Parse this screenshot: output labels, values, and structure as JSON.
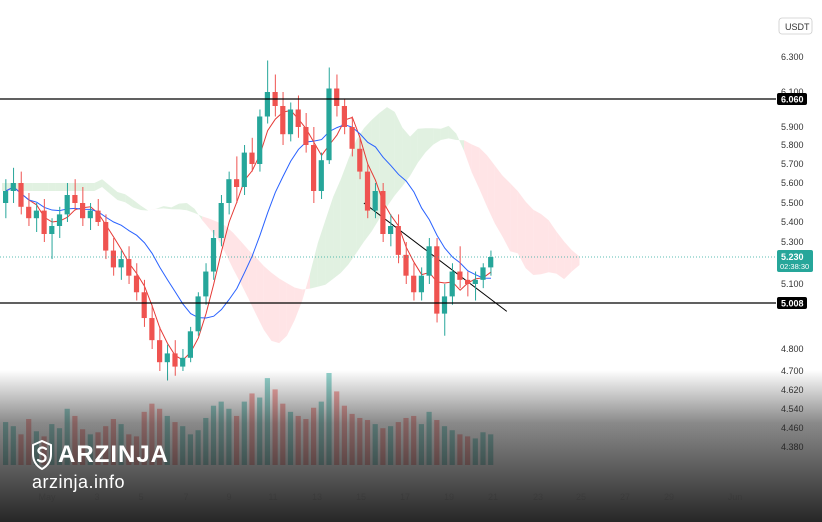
{
  "chart_data": {
    "type": "candlestick",
    "currency": "USDT",
    "y_ticks": [
      "6.300",
      "6.100",
      "5.900",
      "5.800",
      "5.700",
      "5.600",
      "5.500",
      "5.400",
      "5.300",
      "5.100",
      "4.800",
      "4.700",
      "4.620",
      "4.540",
      "4.460",
      "4.380"
    ],
    "x_ticks": [
      "May",
      "3",
      "5",
      "7",
      "9",
      "11",
      "13",
      "15",
      "17",
      "19",
      "21",
      "23",
      "25",
      "27",
      "29",
      "Jun"
    ],
    "last_price": "5.230",
    "countdown": "02:38:30",
    "levels": [
      {
        "label": "6.060",
        "value": 6.06
      },
      {
        "label": "5.008",
        "value": 5.008
      }
    ],
    "colors": {
      "up": "#26a69a",
      "down": "#ef5350",
      "level": "#000000",
      "tenkan": "#e53935",
      "kijun": "#2962ff",
      "cloud_bull": "#c8e6c9",
      "cloud_bear": "#ffcdd2"
    },
    "candles": [
      {
        "o": 5.5,
        "h": 5.62,
        "l": 5.42,
        "c": 5.56
      },
      {
        "o": 5.56,
        "h": 5.68,
        "l": 5.5,
        "c": 5.6
      },
      {
        "o": 5.6,
        "h": 5.66,
        "l": 5.44,
        "c": 5.48
      },
      {
        "o": 5.48,
        "h": 5.55,
        "l": 5.38,
        "c": 5.42
      },
      {
        "o": 5.42,
        "h": 5.5,
        "l": 5.35,
        "c": 5.46
      },
      {
        "o": 5.46,
        "h": 5.52,
        "l": 5.3,
        "c": 5.34
      },
      {
        "o": 5.34,
        "h": 5.42,
        "l": 5.22,
        "c": 5.38
      },
      {
        "o": 5.38,
        "h": 5.48,
        "l": 5.32,
        "c": 5.44
      },
      {
        "o": 5.44,
        "h": 5.6,
        "l": 5.4,
        "c": 5.54
      },
      {
        "o": 5.54,
        "h": 5.62,
        "l": 5.46,
        "c": 5.5
      },
      {
        "o": 5.5,
        "h": 5.58,
        "l": 5.38,
        "c": 5.42
      },
      {
        "o": 5.42,
        "h": 5.5,
        "l": 5.36,
        "c": 5.46
      },
      {
        "o": 5.46,
        "h": 5.52,
        "l": 5.38,
        "c": 5.4
      },
      {
        "o": 5.4,
        "h": 5.44,
        "l": 5.22,
        "c": 5.26
      },
      {
        "o": 5.26,
        "h": 5.32,
        "l": 5.14,
        "c": 5.18
      },
      {
        "o": 5.18,
        "h": 5.26,
        "l": 5.12,
        "c": 5.22
      },
      {
        "o": 5.22,
        "h": 5.28,
        "l": 5.1,
        "c": 5.14
      },
      {
        "o": 5.14,
        "h": 5.2,
        "l": 5.02,
        "c": 5.06
      },
      {
        "o": 5.06,
        "h": 5.12,
        "l": 4.9,
        "c": 4.94
      },
      {
        "o": 4.94,
        "h": 5.0,
        "l": 4.8,
        "c": 4.84
      },
      {
        "o": 4.84,
        "h": 4.9,
        "l": 4.7,
        "c": 4.74
      },
      {
        "o": 4.74,
        "h": 4.82,
        "l": 4.66,
        "c": 4.78
      },
      {
        "o": 4.78,
        "h": 4.84,
        "l": 4.68,
        "c": 4.72
      },
      {
        "o": 4.72,
        "h": 4.8,
        "l": 4.7,
        "c": 4.76
      },
      {
        "o": 4.76,
        "h": 4.9,
        "l": 4.74,
        "c": 4.88
      },
      {
        "o": 4.88,
        "h": 5.06,
        "l": 4.86,
        "c": 5.04
      },
      {
        "o": 5.04,
        "h": 5.2,
        "l": 5.0,
        "c": 5.16
      },
      {
        "o": 5.16,
        "h": 5.36,
        "l": 5.12,
        "c": 5.32
      },
      {
        "o": 5.32,
        "h": 5.54,
        "l": 5.28,
        "c": 5.5
      },
      {
        "o": 5.5,
        "h": 5.66,
        "l": 5.44,
        "c": 5.62
      },
      {
        "o": 5.62,
        "h": 5.74,
        "l": 5.5,
        "c": 5.58
      },
      {
        "o": 5.58,
        "h": 5.8,
        "l": 5.54,
        "c": 5.76
      },
      {
        "o": 5.76,
        "h": 5.84,
        "l": 5.66,
        "c": 5.7
      },
      {
        "o": 5.7,
        "h": 6.0,
        "l": 5.66,
        "c": 5.96
      },
      {
        "o": 5.96,
        "h": 6.28,
        "l": 5.92,
        "c": 6.1
      },
      {
        "o": 6.1,
        "h": 6.2,
        "l": 5.96,
        "c": 6.02
      },
      {
        "o": 6.02,
        "h": 6.1,
        "l": 5.8,
        "c": 5.86
      },
      {
        "o": 5.86,
        "h": 6.04,
        "l": 5.82,
        "c": 6.0
      },
      {
        "o": 6.0,
        "h": 6.08,
        "l": 5.84,
        "c": 5.9
      },
      {
        "o": 5.9,
        "h": 5.98,
        "l": 5.76,
        "c": 5.8
      },
      {
        "o": 5.8,
        "h": 5.9,
        "l": 5.5,
        "c": 5.56
      },
      {
        "o": 5.56,
        "h": 5.76,
        "l": 5.52,
        "c": 5.72
      },
      {
        "o": 5.72,
        "h": 6.24,
        "l": 5.7,
        "c": 6.12
      },
      {
        "o": 6.12,
        "h": 6.2,
        "l": 5.96,
        "c": 6.02
      },
      {
        "o": 6.02,
        "h": 6.06,
        "l": 5.86,
        "c": 5.9
      },
      {
        "o": 5.9,
        "h": 5.96,
        "l": 5.74,
        "c": 5.78
      },
      {
        "o": 5.78,
        "h": 5.84,
        "l": 5.62,
        "c": 5.66
      },
      {
        "o": 5.66,
        "h": 5.7,
        "l": 5.42,
        "c": 5.46
      },
      {
        "o": 5.46,
        "h": 5.6,
        "l": 5.42,
        "c": 5.56
      },
      {
        "o": 5.56,
        "h": 5.6,
        "l": 5.3,
        "c": 5.34
      },
      {
        "o": 5.34,
        "h": 5.44,
        "l": 5.28,
        "c": 5.38
      },
      {
        "o": 5.38,
        "h": 5.44,
        "l": 5.2,
        "c": 5.24
      },
      {
        "o": 5.24,
        "h": 5.3,
        "l": 5.1,
        "c": 5.14
      },
      {
        "o": 5.14,
        "h": 5.2,
        "l": 5.02,
        "c": 5.06
      },
      {
        "o": 5.06,
        "h": 5.18,
        "l": 5.02,
        "c": 5.14
      },
      {
        "o": 5.14,
        "h": 5.32,
        "l": 5.1,
        "c": 5.28
      },
      {
        "o": 5.28,
        "h": 5.32,
        "l": 4.92,
        "c": 4.96
      },
      {
        "o": 4.96,
        "h": 5.1,
        "l": 4.86,
        "c": 5.04
      },
      {
        "o": 5.04,
        "h": 5.2,
        "l": 5.0,
        "c": 5.16
      },
      {
        "o": 5.16,
        "h": 5.28,
        "l": 5.08,
        "c": 5.12
      },
      {
        "o": 5.12,
        "h": 5.16,
        "l": 5.04,
        "c": 5.1
      },
      {
        "o": 5.1,
        "h": 5.16,
        "l": 5.02,
        "c": 5.12
      },
      {
        "o": 5.12,
        "h": 5.2,
        "l": 5.08,
        "c": 5.18
      },
      {
        "o": 5.18,
        "h": 5.26,
        "l": 5.14,
        "c": 5.23
      }
    ],
    "volumes": [
      42,
      38,
      30,
      45,
      33,
      28,
      40,
      36,
      55,
      48,
      35,
      30,
      32,
      38,
      45,
      40,
      30,
      28,
      52,
      60,
      55,
      48,
      42,
      38,
      30,
      34,
      46,
      58,
      62,
      55,
      48,
      62,
      70,
      66,
      85,
      74,
      60,
      52,
      48,
      45,
      56,
      62,
      90,
      72,
      58,
      50,
      46,
      44,
      40,
      36,
      38,
      42,
      46,
      48,
      40,
      52,
      44,
      38,
      34,
      30,
      28,
      26,
      32,
      30
    ]
  }
}
